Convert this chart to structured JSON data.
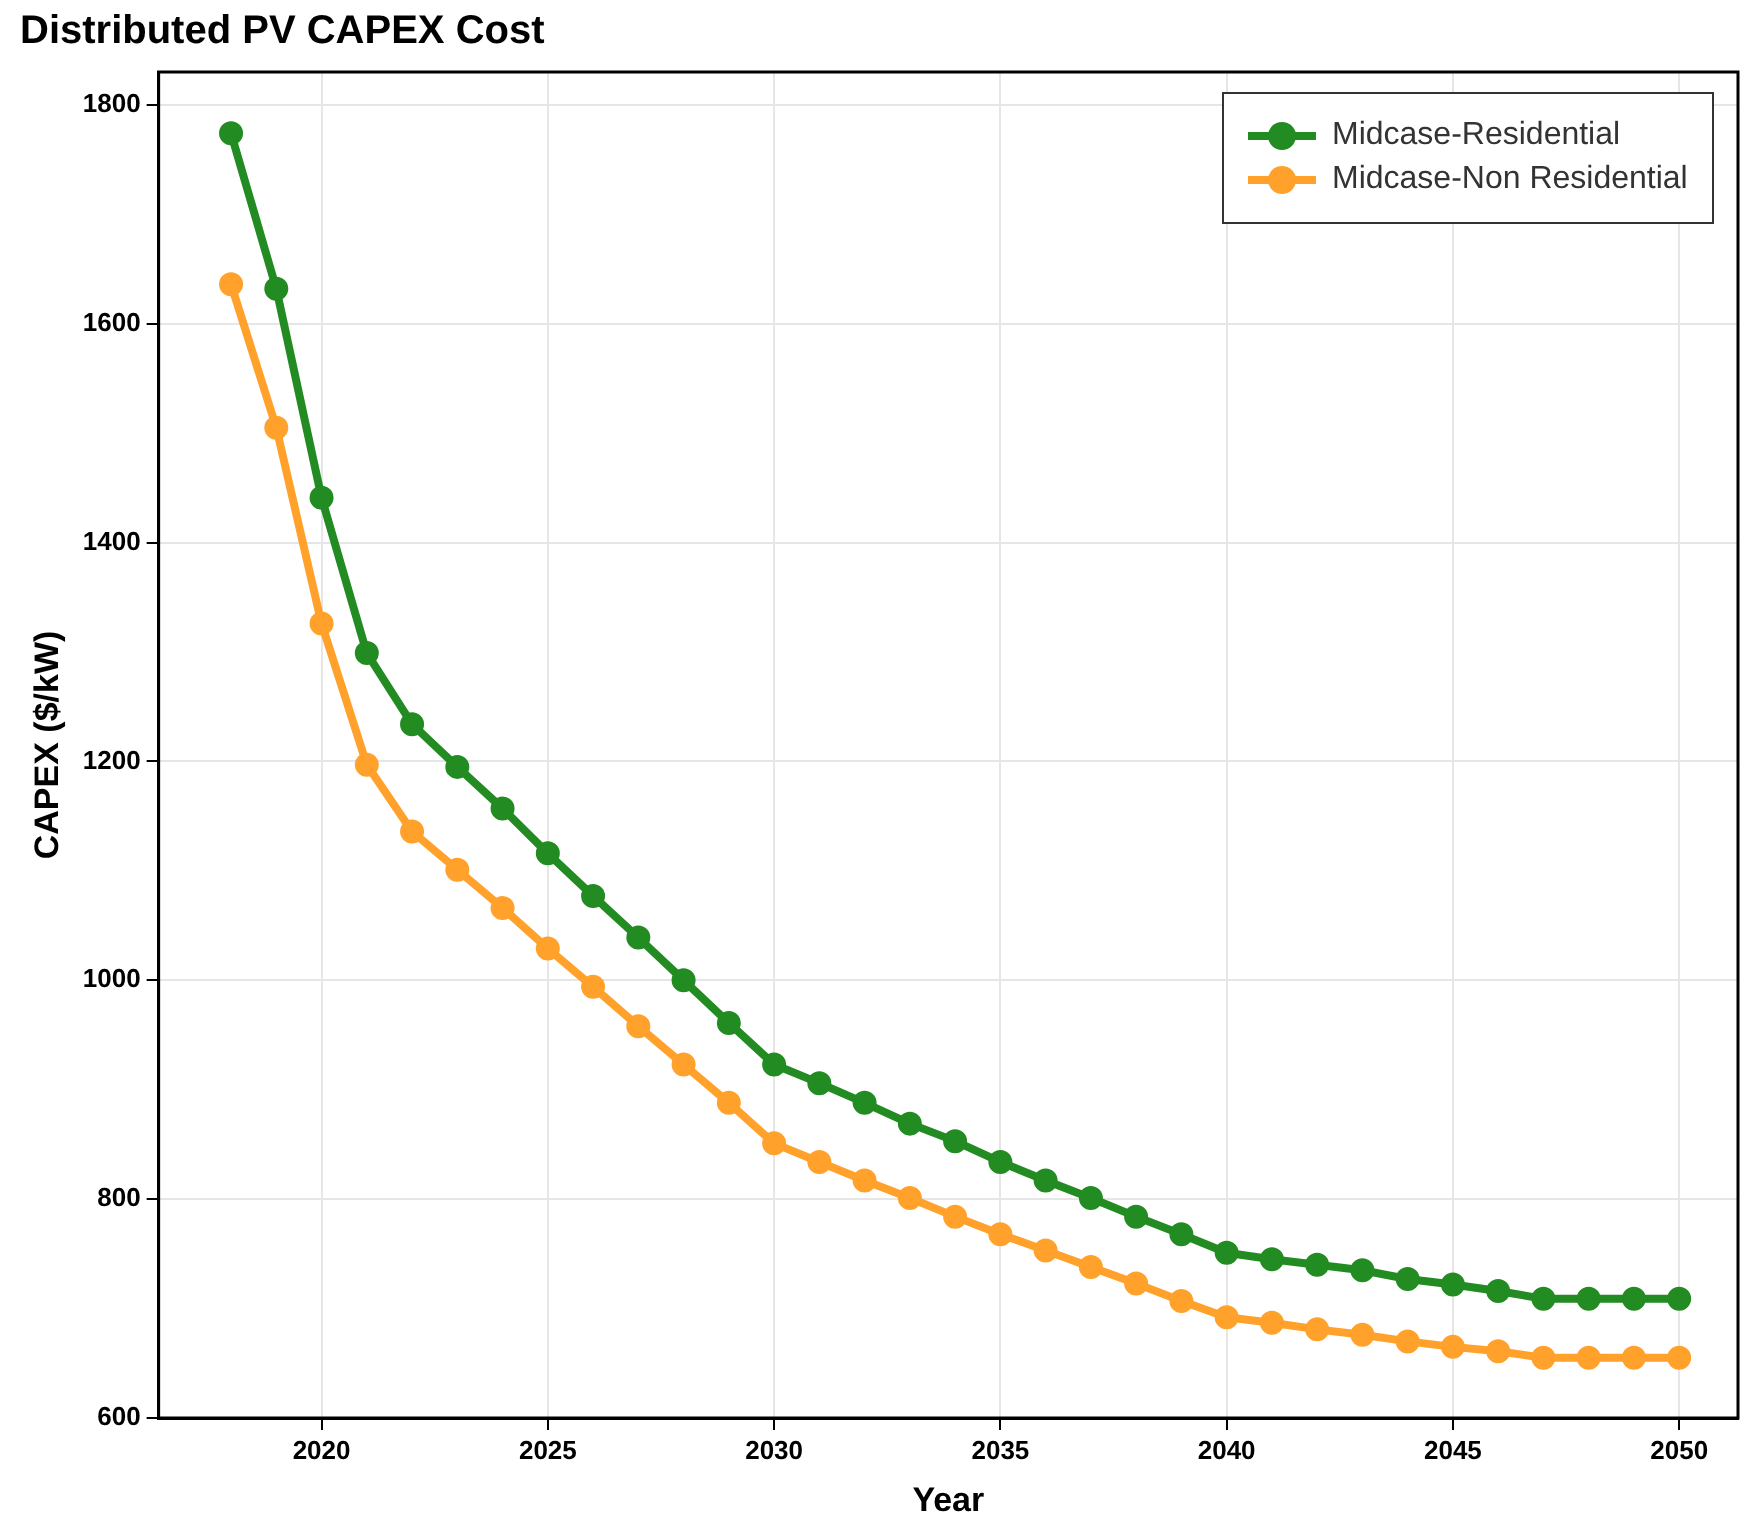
{
  "chart_data": {
    "type": "line",
    "title": "Distributed PV CAPEX Cost",
    "xlabel": "Year",
    "ylabel": "CAPEX ($/kW)",
    "x": [
      2018,
      2019,
      2020,
      2021,
      2022,
      2023,
      2024,
      2025,
      2026,
      2027,
      2028,
      2029,
      2030,
      2031,
      2032,
      2033,
      2034,
      2035,
      2036,
      2037,
      2038,
      2039,
      2040,
      2041,
      2042,
      2043,
      2044,
      2045,
      2046,
      2047,
      2048,
      2049,
      2050
    ],
    "series": [
      {
        "name": "Midcase-Residential",
        "color": "#228b22",
        "values": [
          1774,
          1632,
          1441,
          1299,
          1234,
          1195,
          1157,
          1116,
          1077,
          1039,
          1000,
          961,
          923,
          906,
          888,
          869,
          853,
          834,
          817,
          801,
          784,
          768,
          751,
          745,
          740,
          735,
          727,
          722,
          716,
          709,
          709,
          709,
          709
        ]
      },
      {
        "name": "Midcase-Non Residential",
        "color": "#ffa12b",
        "values": [
          1636,
          1505,
          1326,
          1197,
          1136,
          1101,
          1066,
          1029,
          994,
          958,
          923,
          888,
          851,
          834,
          817,
          801,
          784,
          768,
          753,
          738,
          723,
          707,
          692,
          687,
          681,
          676,
          670,
          665,
          661,
          655,
          655,
          655,
          655
        ]
      }
    ],
    "xlim": [
      2016.4,
      2051.3
    ],
    "xticks": [
      2020,
      2025,
      2030,
      2035,
      2040,
      2045,
      2050
    ],
    "ylim": [
      600,
      1830
    ],
    "yticks": [
      600,
      800,
      1000,
      1200,
      1400,
      1600,
      1800
    ],
    "grid": true,
    "legend": "top right",
    "marker": "circle",
    "line_style": "solid"
  }
}
